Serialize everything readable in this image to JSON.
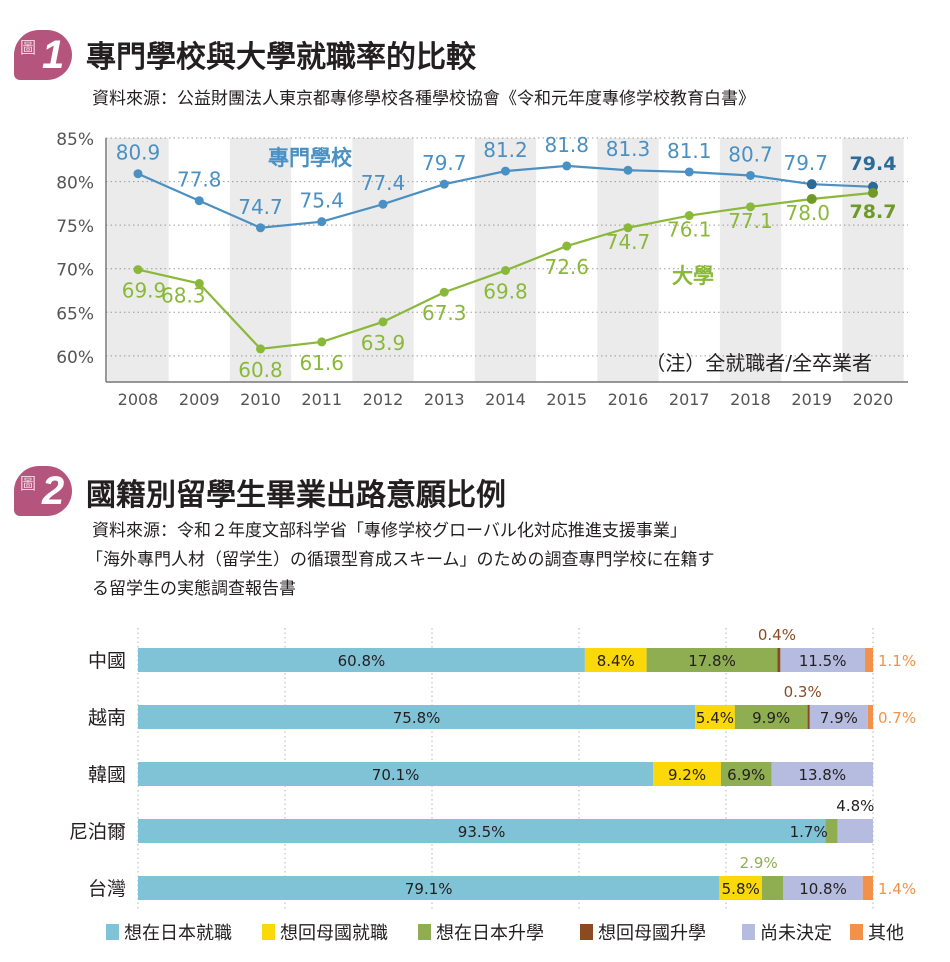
{
  "chart1": {
    "badge_kanji": "圖",
    "badge_number": "1",
    "title": "專門學校與大學就職率的比較",
    "source": "資料來源：公益財團法人東京都專修學校各種學校協會《令和元年度專修学校教育白書》",
    "note": "（注）全就職者/全卒業者",
    "colors": {
      "senmon": "#4a90c2",
      "daigaku": "#8ab83a",
      "band": "#ebebeb"
    },
    "chart_data": {
      "type": "line",
      "title": "專門學校與大學就職率的比較",
      "x": [
        "2008",
        "2009",
        "2010",
        "2011",
        "2012",
        "2013",
        "2014",
        "2015",
        "2016",
        "2017",
        "2018",
        "2019",
        "2020"
      ],
      "ylim": [
        57,
        85
      ],
      "yticks": [
        {
          "value": 85,
          "label": "85%"
        },
        {
          "value": 80,
          "label": "80%"
        },
        {
          "value": 75,
          "label": "75%"
        },
        {
          "value": 70,
          "label": "70%"
        },
        {
          "value": 65,
          "label": "65%"
        },
        {
          "value": 60,
          "label": "60%"
        }
      ],
      "grid": "dotted-horizontal",
      "series": [
        {
          "name": "專門學校",
          "values": [
            80.9,
            77.8,
            74.7,
            75.4,
            77.4,
            79.7,
            81.2,
            81.8,
            81.3,
            81.1,
            80.7,
            79.7,
            79.4
          ],
          "labels": [
            "80.9",
            "77.8",
            "74.7",
            "75.4",
            "77.4",
            "79.7",
            "81.2",
            "81.8",
            "81.3",
            "81.1",
            "80.7",
            "79.7",
            "79.4"
          ]
        },
        {
          "name": "大學",
          "values": [
            69.9,
            68.3,
            60.8,
            61.6,
            63.9,
            67.3,
            69.8,
            72.6,
            74.7,
            76.1,
            77.1,
            78.0,
            78.7
          ],
          "labels": [
            "69.9",
            "68.3",
            "60.8",
            "61.6",
            "63.9",
            "67.3",
            "69.8",
            "72.6",
            "74.7",
            "76.1",
            "77.1",
            "78.0",
            "78.7"
          ]
        }
      ]
    }
  },
  "chart2": {
    "badge_kanji": "圖",
    "badge_number": "2",
    "title": "國籍別留學生畢業出路意願比例",
    "source_lines": [
      "資料來源：令和２年度文部科学省「專修学校グローバル化対応推進支援事業」",
      "「海外專門人材（留学生）の循環型育成スキーム」のための調查專門学校に在籍す",
      "る留学生の実態調查報告書"
    ],
    "chart_data": {
      "type": "bar",
      "orientation": "horizontal-stacked-100",
      "categories": [
        "中國",
        "越南",
        "韓國",
        "尼泊爾",
        "台灣"
      ],
      "series": [
        {
          "name": "想在日本就職",
          "color": "#80c2d6",
          "values": [
            60.8,
            75.8,
            70.1,
            93.5,
            79.1
          ]
        },
        {
          "name": "想回母國就職",
          "color": "#fbd80a",
          "values": [
            8.4,
            5.4,
            9.2,
            0,
            5.8
          ]
        },
        {
          "name": "想在日本升學",
          "color": "#8fae52",
          "values": [
            17.8,
            9.9,
            6.9,
            1.7,
            2.9
          ]
        },
        {
          "name": "想回母國升學",
          "color": "#8b4a22",
          "values": [
            0.4,
            0.3,
            0,
            0,
            0
          ]
        },
        {
          "name": "尚未決定",
          "color": "#b5bce0",
          "values": [
            11.5,
            7.9,
            13.8,
            4.8,
            10.8
          ]
        },
        {
          "name": "其他",
          "color": "#f2924a",
          "values": [
            1.1,
            0.7,
            0,
            0,
            1.4
          ]
        }
      ],
      "data_labels": [
        [
          "60.8%",
          "8.4%",
          "17.8%",
          "0.4%",
          "11.5%",
          "1.1%"
        ],
        [
          "75.8%",
          "5.4%",
          "9.9%",
          "0.3%",
          "7.9%",
          "0.7%"
        ],
        [
          "70.1%",
          "9.2%",
          "6.9%",
          "",
          "13.8%",
          ""
        ],
        [
          "93.5%",
          "",
          "1.7%",
          "",
          "4.8%",
          ""
        ],
        [
          "79.1%",
          "5.8%",
          "2.9%",
          "",
          "10.8%",
          "1.4%"
        ]
      ],
      "legend_position": "bottom",
      "grid": "dotted-vertical"
    }
  }
}
